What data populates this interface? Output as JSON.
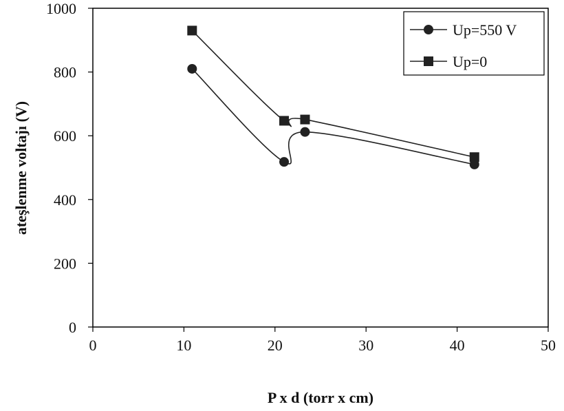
{
  "chart_data": {
    "type": "line",
    "title": "",
    "xlabel": "P x d (torr x cm)",
    "ylabel": "ateşlenme voltajı (V)",
    "xlim": [
      0,
      50
    ],
    "ylim": [
      0,
      1000
    ],
    "xticks": [
      0,
      10,
      20,
      30,
      40,
      50
    ],
    "yticks": [
      0,
      200,
      400,
      600,
      800,
      1000
    ],
    "grid": false,
    "legend_position": "top-right",
    "series": [
      {
        "name": "Up=550 V",
        "marker": "circle",
        "x": [
          10.9,
          21.0,
          23.3,
          41.9
        ],
        "y": [
          810,
          518,
          612,
          510
        ],
        "color": "#222222"
      },
      {
        "name": "Up=0",
        "marker": "square",
        "x": [
          10.9,
          21.0,
          23.3,
          41.9
        ],
        "y": [
          930,
          647,
          651,
          533
        ],
        "color": "#222222"
      }
    ]
  }
}
